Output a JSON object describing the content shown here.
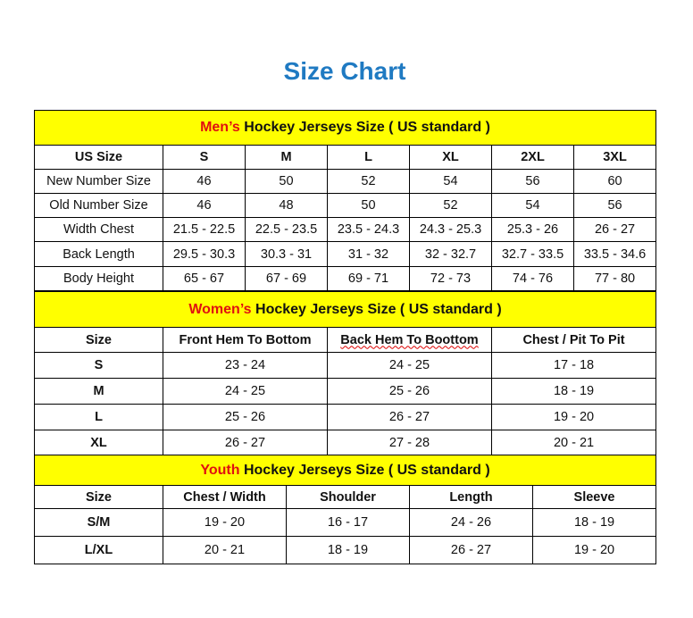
{
  "title": "Size Chart",
  "men": {
    "highlight": "Men’s",
    "heading": " Hockey Jerseys Size ( US standard )",
    "columns": [
      "US Size",
      "S",
      "M",
      "L",
      "XL",
      "2XL",
      "3XL"
    ],
    "rows": [
      [
        "New Number Size",
        "46",
        "50",
        "52",
        "54",
        "56",
        "60"
      ],
      [
        "Old Number Size",
        "46",
        "48",
        "50",
        "52",
        "54",
        "56"
      ],
      [
        "Width Chest",
        "21.5 - 22.5",
        "22.5 - 23.5",
        "23.5 - 24.3",
        "24.3 - 25.3",
        "25.3 - 26",
        "26 - 27"
      ],
      [
        "Back Length",
        "29.5 - 30.3",
        "30.3 - 31",
        "31 - 32",
        "32 - 32.7",
        "32.7 - 33.5",
        "33.5 - 34.6"
      ],
      [
        "Body Height",
        "65 - 67",
        "67 - 69",
        "69 - 71",
        "72 - 73",
        "74 - 76",
        "77 - 80"
      ]
    ]
  },
  "women": {
    "highlight": "Women’s",
    "heading": " Hockey Jerseys Size ( US standard )",
    "columns": [
      "Size",
      "Front Hem To Bottom",
      "Back Hem To Boottom",
      "Chest / Pit To Pit"
    ],
    "rows": [
      [
        "S",
        "23 - 24",
        "24 - 25",
        "17 - 18"
      ],
      [
        "M",
        "24 - 25",
        "25 - 26",
        "18 - 19"
      ],
      [
        "L",
        "25 - 26",
        "26 - 27",
        "19 - 20"
      ],
      [
        "XL",
        "26 - 27",
        "27 - 28",
        "20 - 21"
      ]
    ]
  },
  "youth": {
    "highlight": "Youth",
    "heading": " Hockey Jerseys Size ( US standard )",
    "columns": [
      "Size",
      "Chest / Width",
      "Shoulder",
      "Length",
      "Sleeve"
    ],
    "rows": [
      [
        "S/M",
        "19 - 20",
        "16 - 17",
        "24 - 26",
        "18 - 19"
      ],
      [
        "L/XL",
        "20 - 21",
        "18 - 19",
        "26 - 27",
        "19 - 20"
      ]
    ]
  }
}
